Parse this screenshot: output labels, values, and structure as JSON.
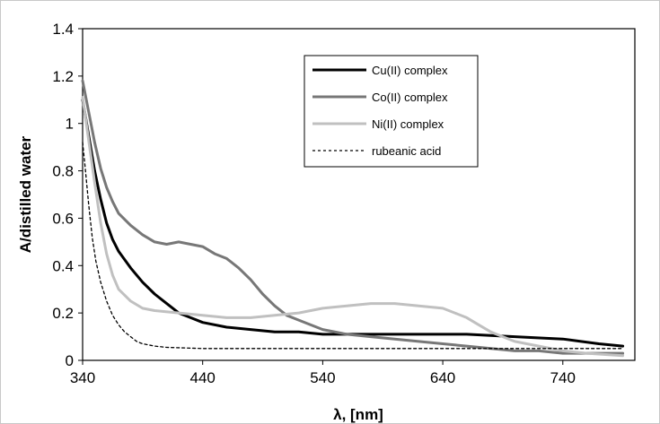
{
  "chart_data": {
    "type": "line",
    "xlabel": "λ, [nm]",
    "ylabel": "A/distilled water",
    "xlim": [
      340,
      800
    ],
    "ylim": [
      0,
      1.4
    ],
    "x_ticks": [
      "340",
      "440",
      "540",
      "640",
      "740"
    ],
    "y_ticks": [
      "0",
      "0.2",
      "0.4",
      "0.6",
      "0.8",
      "1",
      "1.2",
      "1.4"
    ],
    "grid": false,
    "legend_position": "top-right",
    "series": [
      {
        "name": "Cu(II) complex",
        "color": "#000000",
        "style": "solid",
        "x": [
          340,
          345,
          350,
          355,
          360,
          365,
          370,
          380,
          390,
          400,
          410,
          420,
          430,
          440,
          460,
          480,
          500,
          520,
          540,
          580,
          620,
          660,
          700,
          740,
          770,
          790
        ],
        "y": [
          1.1,
          0.95,
          0.8,
          0.68,
          0.58,
          0.51,
          0.46,
          0.39,
          0.33,
          0.28,
          0.24,
          0.2,
          0.18,
          0.16,
          0.14,
          0.13,
          0.12,
          0.12,
          0.11,
          0.11,
          0.11,
          0.11,
          0.1,
          0.09,
          0.07,
          0.06
        ]
      },
      {
        "name": "Co(II) complex",
        "color": "#777777",
        "style": "solid",
        "x": [
          340,
          345,
          350,
          355,
          360,
          365,
          370,
          380,
          390,
          400,
          410,
          420,
          430,
          440,
          450,
          460,
          470,
          480,
          490,
          500,
          510,
          520,
          530,
          540,
          560,
          580,
          600,
          620,
          640,
          660,
          680,
          700,
          720,
          740,
          760,
          790
        ],
        "y": [
          1.18,
          1.05,
          0.92,
          0.81,
          0.73,
          0.67,
          0.62,
          0.57,
          0.53,
          0.5,
          0.49,
          0.5,
          0.49,
          0.48,
          0.45,
          0.43,
          0.39,
          0.34,
          0.28,
          0.23,
          0.19,
          0.17,
          0.15,
          0.13,
          0.11,
          0.1,
          0.09,
          0.08,
          0.07,
          0.06,
          0.05,
          0.04,
          0.04,
          0.03,
          0.03,
          0.03
        ]
      },
      {
        "name": "Ni(II) complex",
        "color": "#c0c0c0",
        "style": "solid",
        "x": [
          340,
          345,
          350,
          355,
          360,
          365,
          370,
          380,
          390,
          400,
          420,
          440,
          460,
          480,
          500,
          520,
          540,
          560,
          580,
          600,
          620,
          640,
          650,
          660,
          670,
          680,
          690,
          700,
          720,
          740,
          760,
          790
        ],
        "y": [
          1.11,
          0.93,
          0.75,
          0.58,
          0.45,
          0.36,
          0.3,
          0.25,
          0.22,
          0.21,
          0.2,
          0.19,
          0.18,
          0.18,
          0.19,
          0.2,
          0.22,
          0.23,
          0.24,
          0.24,
          0.23,
          0.22,
          0.2,
          0.18,
          0.15,
          0.12,
          0.1,
          0.08,
          0.06,
          0.04,
          0.03,
          0.02
        ]
      },
      {
        "name": "rubeanic acid",
        "color": "#000000",
        "style": "dotted",
        "x": [
          340,
          342,
          345,
          348,
          351,
          355,
          360,
          365,
          370,
          375,
          380,
          385,
          390,
          395,
          400,
          410,
          440,
          500,
          600,
          700,
          790
        ],
        "y": [
          0.92,
          0.82,
          0.66,
          0.52,
          0.42,
          0.33,
          0.25,
          0.19,
          0.15,
          0.12,
          0.1,
          0.08,
          0.07,
          0.065,
          0.06,
          0.055,
          0.05,
          0.05,
          0.05,
          0.05,
          0.05
        ]
      }
    ]
  }
}
